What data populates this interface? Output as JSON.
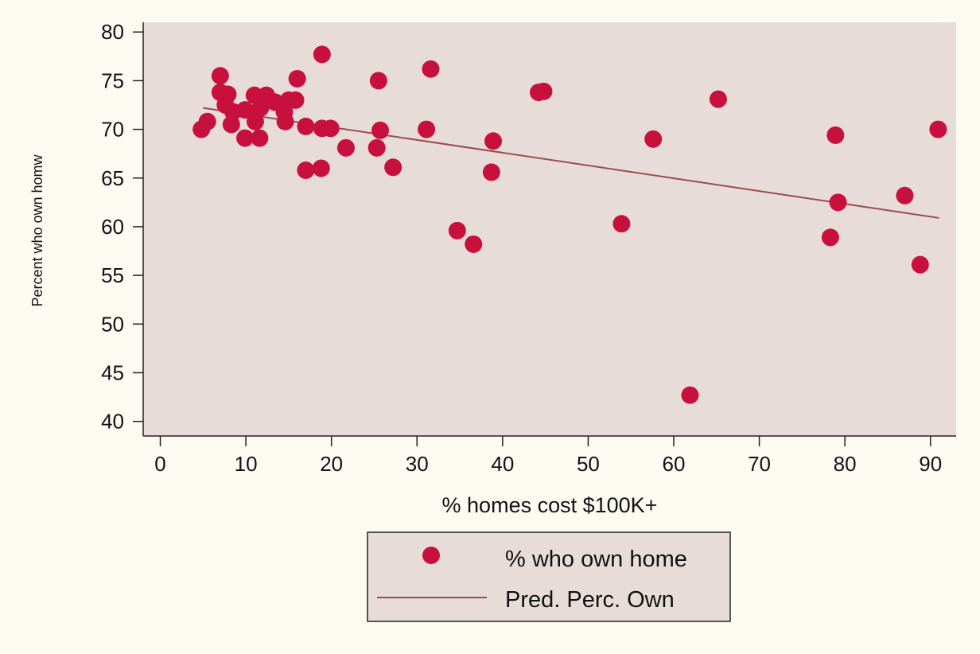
{
  "chart_data": {
    "type": "scatter",
    "xlabel": "% homes cost $100K+",
    "ylabel": "Percent who own homw",
    "xlim": [
      -2,
      93
    ],
    "ylim": [
      38.5,
      81
    ],
    "xticks": [
      0,
      10,
      20,
      30,
      40,
      50,
      60,
      70,
      80,
      90
    ],
    "yticks": [
      40,
      45,
      50,
      55,
      60,
      65,
      70,
      75,
      80
    ],
    "grid": false,
    "legend_position": "bottom",
    "colors": {
      "page_background": "#fdfbf1",
      "plot_background": "#e8dcd9",
      "points": "#c8103e",
      "fit_line": "#9c4a52"
    },
    "series": [
      {
        "name": "% who own home",
        "kind": "scatter",
        "points": [
          [
            4.8,
            70.0
          ],
          [
            5.5,
            70.8
          ],
          [
            7.0,
            75.5
          ],
          [
            7.0,
            73.8
          ],
          [
            7.6,
            72.5
          ],
          [
            7.9,
            73.6
          ],
          [
            8.5,
            71.8
          ],
          [
            8.3,
            70.5
          ],
          [
            9.9,
            72.0
          ],
          [
            9.9,
            69.1
          ],
          [
            11.0,
            73.5
          ],
          [
            11.1,
            70.8
          ],
          [
            11.7,
            72.2
          ],
          [
            11.6,
            69.1
          ],
          [
            12.0,
            72.8
          ],
          [
            12.4,
            73.5
          ],
          [
            13.4,
            72.8
          ],
          [
            14.5,
            71.8
          ],
          [
            14.6,
            70.8
          ],
          [
            15.0,
            73.0
          ],
          [
            15.8,
            73.0
          ],
          [
            16.0,
            75.2
          ],
          [
            17.0,
            70.3
          ],
          [
            17.0,
            65.8
          ],
          [
            18.8,
            66.0
          ],
          [
            18.9,
            70.1
          ],
          [
            18.9,
            77.7
          ],
          [
            19.9,
            70.1
          ],
          [
            21.7,
            68.1
          ],
          [
            25.3,
            68.1
          ],
          [
            25.5,
            75.0
          ],
          [
            25.7,
            69.9
          ],
          [
            27.2,
            66.1
          ],
          [
            31.1,
            70.0
          ],
          [
            31.6,
            76.2
          ],
          [
            34.7,
            59.6
          ],
          [
            36.6,
            58.2
          ],
          [
            38.7,
            65.6
          ],
          [
            38.9,
            68.8
          ],
          [
            44.2,
            73.8
          ],
          [
            44.8,
            73.9
          ],
          [
            53.9,
            60.3
          ],
          [
            57.6,
            69.0
          ],
          [
            61.9,
            42.7
          ],
          [
            65.2,
            73.1
          ],
          [
            78.3,
            58.9
          ],
          [
            78.9,
            69.4
          ],
          [
            79.2,
            62.5
          ],
          [
            87.0,
            63.2
          ],
          [
            88.8,
            56.1
          ],
          [
            90.9,
            70.0
          ]
        ]
      },
      {
        "name": "Pred. Perc. Own",
        "kind": "line",
        "points": [
          [
            5.0,
            72.2
          ],
          [
            91.0,
            60.9
          ]
        ]
      }
    ]
  }
}
